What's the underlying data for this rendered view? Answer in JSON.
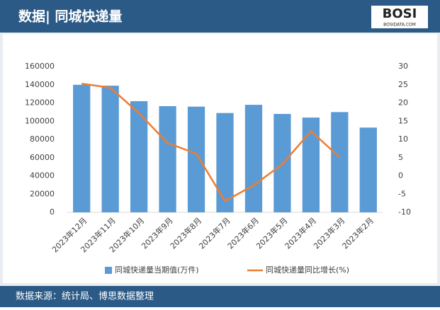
{
  "chart_data": {
    "type": "bar-line",
    "title": "数据| 同城快递量",
    "source": "数据来源：统计局、博思数据整理",
    "logo": "BOSI",
    "logo_sub": "BOSIDATA.COM",
    "categories": [
      "2023年12月",
      "2023年11月",
      "2023年10月",
      "2023年9月",
      "2023年8月",
      "2023年7月",
      "2023年6月",
      "2023年5月",
      "2023年4月",
      "2023年3月",
      "2023年2月"
    ],
    "series": [
      {
        "name": "同城快递量当期值(万件)",
        "color": "#5b9bd5",
        "type": "bar",
        "values": [
          140000,
          139000,
          122000,
          116500,
          116000,
          109000,
          118000,
          108000,
          104000,
          110000,
          93000
        ]
      },
      {
        "name": "同城快递量同比增长(%)",
        "color": "#ed7d31",
        "type": "line",
        "axis": "y2",
        "values": [
          25.3,
          24.2,
          17.2,
          9,
          6.1,
          -6.9,
          -2.6,
          3.2,
          12.3,
          5.1,
          null
        ]
      }
    ],
    "ylim": [
      0,
      160000
    ],
    "yticks": [
      0,
      20000,
      40000,
      60000,
      80000,
      100000,
      120000,
      140000,
      160000
    ],
    "y2lim": [
      -10,
      30
    ],
    "y2ticks": [
      -10,
      -5,
      0,
      5,
      10,
      15,
      20,
      25,
      30
    ]
  }
}
